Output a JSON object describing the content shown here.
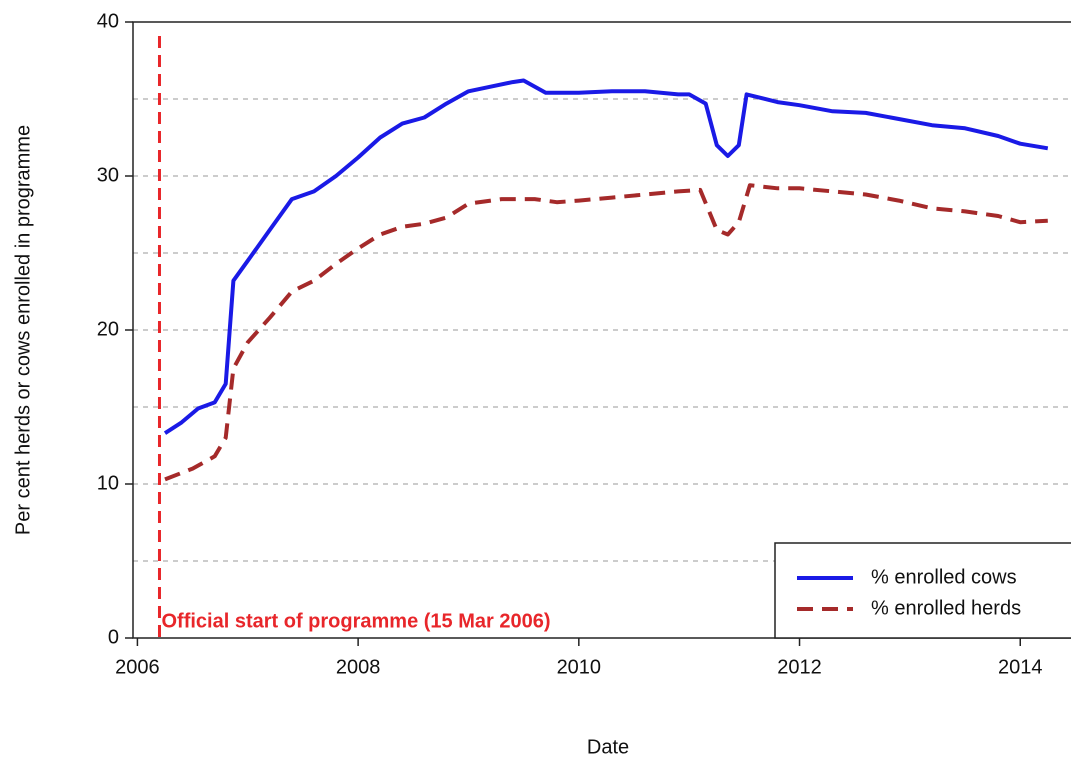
{
  "chart_data": {
    "type": "line",
    "xlabel": "Date",
    "ylabel": "Per cent herds or cows enrolled in programme",
    "xlim": [
      2005.96,
      2014.46
    ],
    "ylim": [
      0,
      40
    ],
    "xticks": [
      2006,
      2008,
      2010,
      2012,
      2014
    ],
    "yticks": [
      0,
      10,
      20,
      30,
      40
    ],
    "ygrid": [
      5,
      10,
      15,
      20,
      25,
      30,
      35
    ],
    "legend": "lower right",
    "annotation": {
      "x": 2006.2,
      "text": "Official start of programme (15 Mar 2006)",
      "color": "#e8262a"
    },
    "series": [
      {
        "name": "% enrolled cows",
        "color": "#1a1ae6",
        "dash": false,
        "x": [
          2006.25,
          2006.4,
          2006.55,
          2006.7,
          2006.8,
          2006.87,
          2007.0,
          2007.2,
          2007.4,
          2007.6,
          2007.8,
          2008.0,
          2008.2,
          2008.4,
          2008.6,
          2008.8,
          2009.0,
          2009.2,
          2009.4,
          2009.5,
          2009.7,
          2010.0,
          2010.3,
          2010.6,
          2010.9,
          2011.0,
          2011.15,
          2011.25,
          2011.35,
          2011.45,
          2011.52,
          2011.8,
          2012.0,
          2012.3,
          2012.6,
          2012.9,
          2013.2,
          2013.5,
          2013.8,
          2014.0,
          2014.25
        ],
        "values": [
          13.3,
          14.0,
          14.9,
          15.3,
          16.5,
          23.2,
          24.5,
          26.5,
          28.5,
          29.0,
          30.0,
          31.2,
          32.5,
          33.4,
          33.8,
          34.7,
          35.5,
          35.8,
          36.1,
          36.2,
          35.4,
          35.4,
          35.5,
          35.5,
          35.3,
          35.3,
          34.7,
          32.0,
          31.3,
          32.0,
          35.3,
          34.8,
          34.6,
          34.2,
          34.1,
          33.7,
          33.3,
          33.1,
          32.6,
          32.1,
          31.8
        ]
      },
      {
        "name": "% enrolled herds",
        "color": "#a52a2a",
        "dash": true,
        "x": [
          2006.25,
          2006.5,
          2006.7,
          2006.8,
          2006.87,
          2007.0,
          2007.2,
          2007.4,
          2007.6,
          2007.8,
          2008.0,
          2008.2,
          2008.4,
          2008.6,
          2008.8,
          2009.0,
          2009.3,
          2009.6,
          2009.8,
          2010.0,
          2010.3,
          2010.6,
          2010.9,
          2011.1,
          2011.25,
          2011.35,
          2011.45,
          2011.55,
          2011.8,
          2012.0,
          2012.3,
          2012.6,
          2012.9,
          2013.2,
          2013.5,
          2013.8,
          2014.0,
          2014.25
        ],
        "values": [
          10.3,
          11.0,
          11.8,
          13.0,
          17.5,
          19.2,
          20.8,
          22.5,
          23.2,
          24.3,
          25.3,
          26.2,
          26.7,
          26.9,
          27.3,
          28.2,
          28.5,
          28.5,
          28.3,
          28.4,
          28.6,
          28.8,
          29.0,
          29.1,
          26.5,
          26.2,
          27.0,
          29.4,
          29.2,
          29.2,
          29.0,
          28.8,
          28.4,
          27.9,
          27.7,
          27.4,
          27.0,
          27.1
        ]
      }
    ]
  }
}
